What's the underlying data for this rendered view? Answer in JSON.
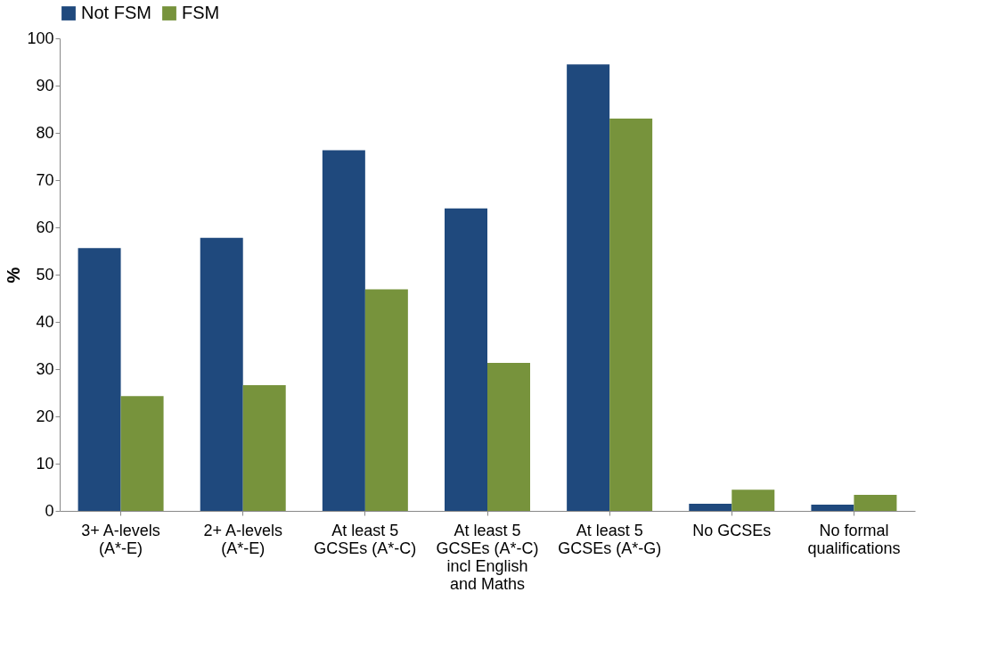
{
  "chart_data": {
    "type": "bar",
    "ylabel": "%",
    "categories": [
      "3+ A-levels (A*-E)",
      "2+ A-levels (A*-E)",
      "At least 5 GCSEs (A*-C)",
      "At least 5 GCSEs (A*-C) incl English and Maths",
      "At least 5 GCSEs (A*-G)",
      "No GCSEs",
      "No formal qualifications"
    ],
    "series": [
      {
        "name": "Not FSM",
        "color": "#1f497d",
        "values": [
          55.6,
          57.8,
          76.3,
          64.0,
          94.5,
          1.5,
          1.3
        ]
      },
      {
        "name": "FSM",
        "color": "#77933c",
        "values": [
          24.3,
          26.6,
          46.9,
          31.3,
          83.0,
          4.5,
          3.4
        ]
      }
    ],
    "ylim": [
      0,
      100
    ],
    "yticks": [
      0,
      10,
      20,
      30,
      40,
      50,
      60,
      70,
      80,
      90,
      100
    ],
    "grid": false,
    "legend": "top"
  }
}
